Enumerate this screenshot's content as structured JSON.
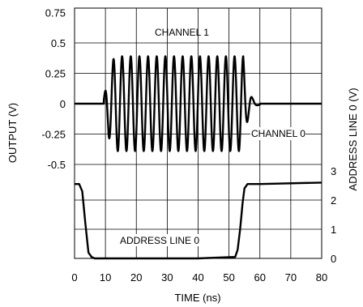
{
  "chart_data": {
    "type": "line",
    "xlabel": "TIME (ns)",
    "ylabel_left": "OUTPUT (V)",
    "ylabel_right": "ADDRESS LINE 0 (V)",
    "xlim": [
      0,
      80
    ],
    "x_ticks": [
      "0",
      "10",
      "20",
      "30",
      "40",
      "50",
      "60",
      "70",
      "80"
    ],
    "y_left_ticks": [
      "0.75",
      "0.5",
      "0.25",
      "0",
      "-0.25",
      "-0.5"
    ],
    "y_right_ticks": [
      "3",
      "2",
      "1",
      "0"
    ],
    "grid": true,
    "annotations": [
      "CHANNEL 1",
      "CHANNEL 0",
      "ADDRESS LINE 0"
    ],
    "burst": {
      "start_ns": 10.5,
      "end_ns": 55.5,
      "peaks_positive_ns": [
        12.6,
        15.4,
        18.2,
        21.0,
        23.8,
        26.6,
        29.4,
        32.2,
        35.0,
        37.8,
        40.6,
        43.4,
        46.2,
        49.0,
        51.8,
        54.6
      ],
      "amplitude_v": 0.39
    },
    "series": [
      {
        "name": "CHANNEL 1",
        "axis": "left",
        "x": [
          0,
          9,
          10,
          10.5,
          11.2,
          12.6,
          14.0,
          15.4,
          16.8,
          18.2,
          19.6,
          21.0,
          22.4,
          23.8,
          25.2,
          26.6,
          28.0,
          29.4,
          30.8,
          32.2,
          33.6,
          35.0,
          36.4,
          37.8,
          39.2,
          40.6,
          42.0,
          43.4,
          44.8,
          46.2,
          47.6,
          49.0,
          50.4,
          51.8,
          53.2,
          54.6,
          55.5,
          56.5,
          57.5,
          58.5,
          60,
          80
        ],
        "y": [
          0,
          0,
          0.02,
          -0.06,
          -0.22,
          0.3,
          -0.35,
          0.38,
          -0.37,
          0.39,
          -0.38,
          0.39,
          -0.38,
          0.39,
          -0.38,
          0.39,
          -0.38,
          0.39,
          -0.38,
          0.39,
          -0.38,
          0.39,
          -0.38,
          0.39,
          -0.38,
          0.39,
          -0.38,
          0.39,
          -0.38,
          0.39,
          -0.38,
          0.39,
          -0.36,
          0.38,
          -0.33,
          0.37,
          -0.28,
          0.1,
          -0.07,
          0.02,
          0,
          0
        ]
      },
      {
        "name": "ADDRESS LINE 0",
        "axis": "right",
        "x": [
          0,
          1.5,
          2.5,
          3.5,
          4.5,
          5.5,
          6.5,
          20,
          40,
          52,
          52.8,
          53.6,
          54.4,
          55.0,
          56,
          60,
          80
        ],
        "y": [
          2.55,
          2.55,
          2.3,
          1.2,
          0.2,
          0.05,
          0,
          0,
          0,
          0.05,
          0.3,
          1.0,
          1.9,
          2.4,
          2.55,
          2.55,
          2.6
        ]
      }
    ]
  }
}
